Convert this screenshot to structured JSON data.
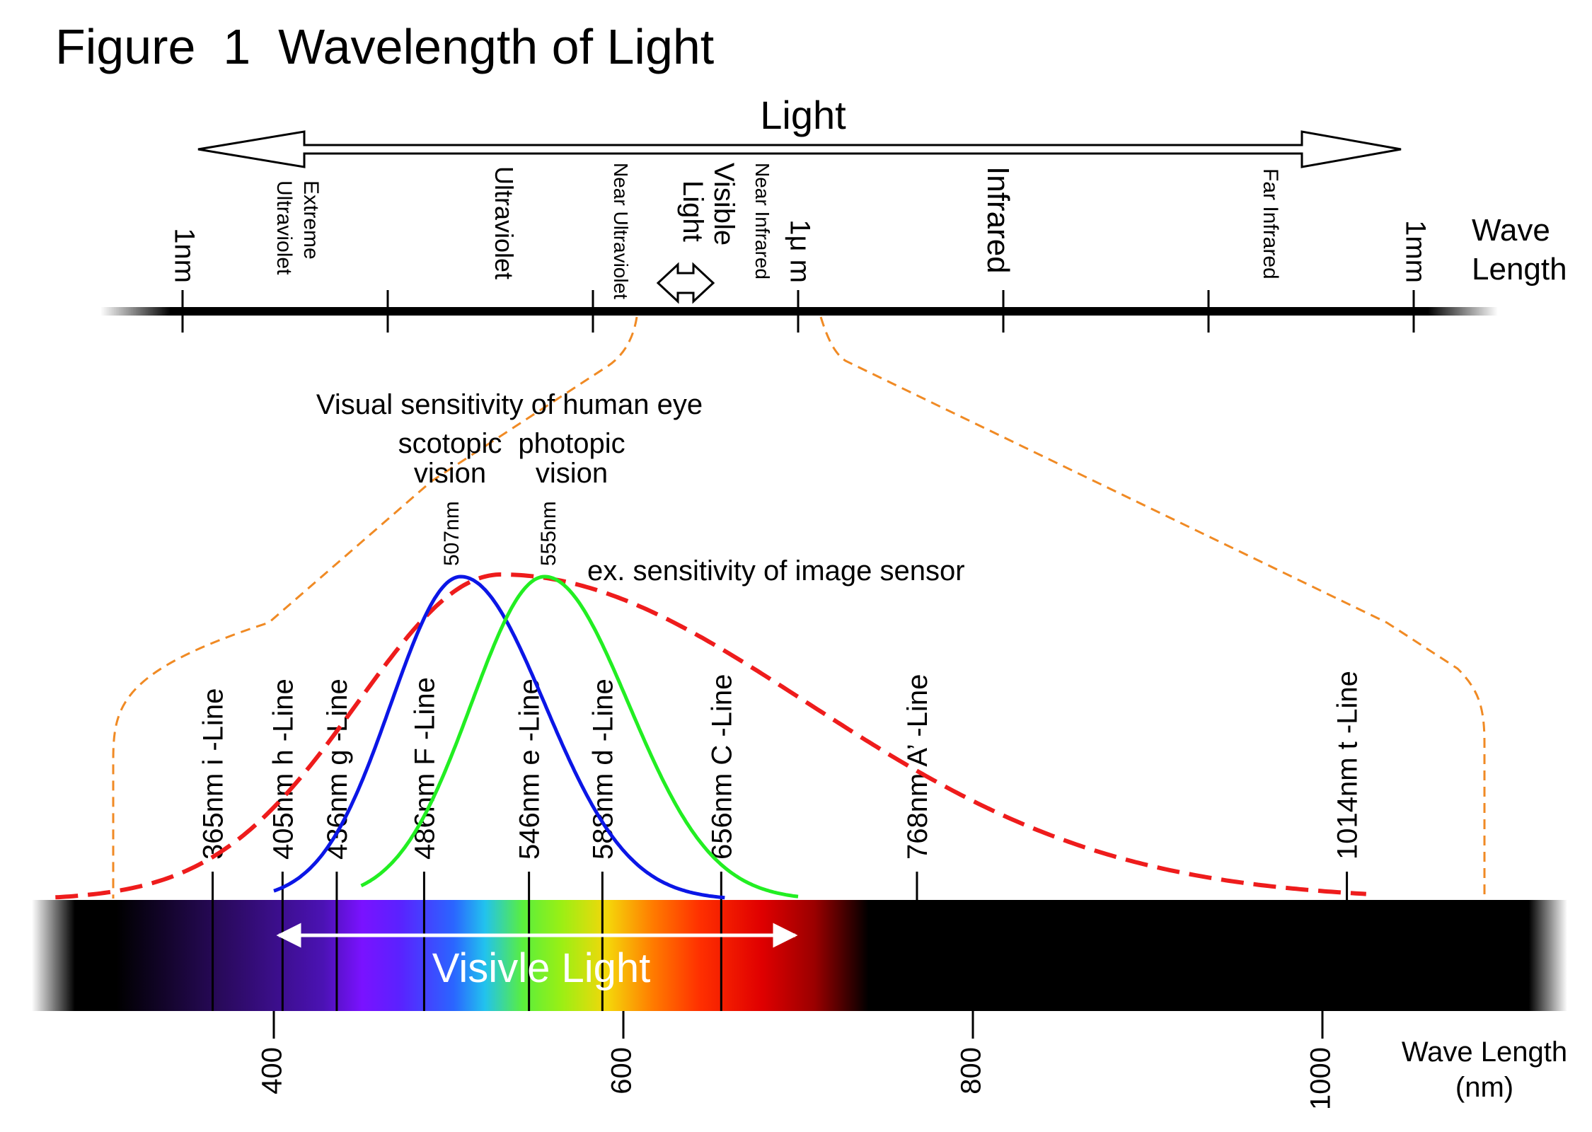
{
  "title": "Figure  1  Wavelength of Light",
  "top_scale": {
    "arrow_label": "Light",
    "axis_label_line1": "Wave",
    "axis_label_line2": "Length",
    "ticks": [
      "1nm",
      "1μ m",
      "1mm"
    ],
    "regions": {
      "extreme_uv_line1": "Extreme",
      "extreme_uv_line2": "Ultraviolet",
      "uv": "Ultraviolet",
      "near_uv": "Near Ultraviolet",
      "visible_line1": "Visible",
      "visible_line2": "Light",
      "near_ir": "Near Infrared",
      "ir": "Infrared",
      "far_ir": "Far Infrared"
    }
  },
  "sensitivity": {
    "heading": "Visual sensitivity of human eye",
    "scotopic_line1": "scotopic",
    "scotopic_line2": "vision",
    "photopic_line1": "photopic",
    "photopic_line2": "vision",
    "scotopic_peak": "507nm",
    "photopic_peak": "555nm",
    "sensor_label": "ex. sensitivity of image sensor",
    "colors": {
      "scotopic": "#0b16e6",
      "photopic": "#22ee22",
      "sensor": "#ee1c1c",
      "guide": "#f08a24"
    }
  },
  "spectral_lines": [
    {
      "nm": 365,
      "label": "365nm  i -Line"
    },
    {
      "nm": 405,
      "label": "405nm  h -Line"
    },
    {
      "nm": 436,
      "label": "436nm  g -Line"
    },
    {
      "nm": 486,
      "label": "486nm  F -Line"
    },
    {
      "nm": 546,
      "label": "546nm  e -Line"
    },
    {
      "nm": 588,
      "label": "588nm  d -Line"
    },
    {
      "nm": 656,
      "label": "656nm  C -Line"
    },
    {
      "nm": 768,
      "label": "768nm  A’ -Line"
    },
    {
      "nm": 1014,
      "label": "1014nm  t -Line"
    }
  ],
  "bottom_axis": {
    "ticks": [
      400,
      600,
      800,
      1000
    ],
    "label_line1": "Wave Length",
    "label_line2": "(nm)",
    "band_label": "Visivle Light"
  }
}
